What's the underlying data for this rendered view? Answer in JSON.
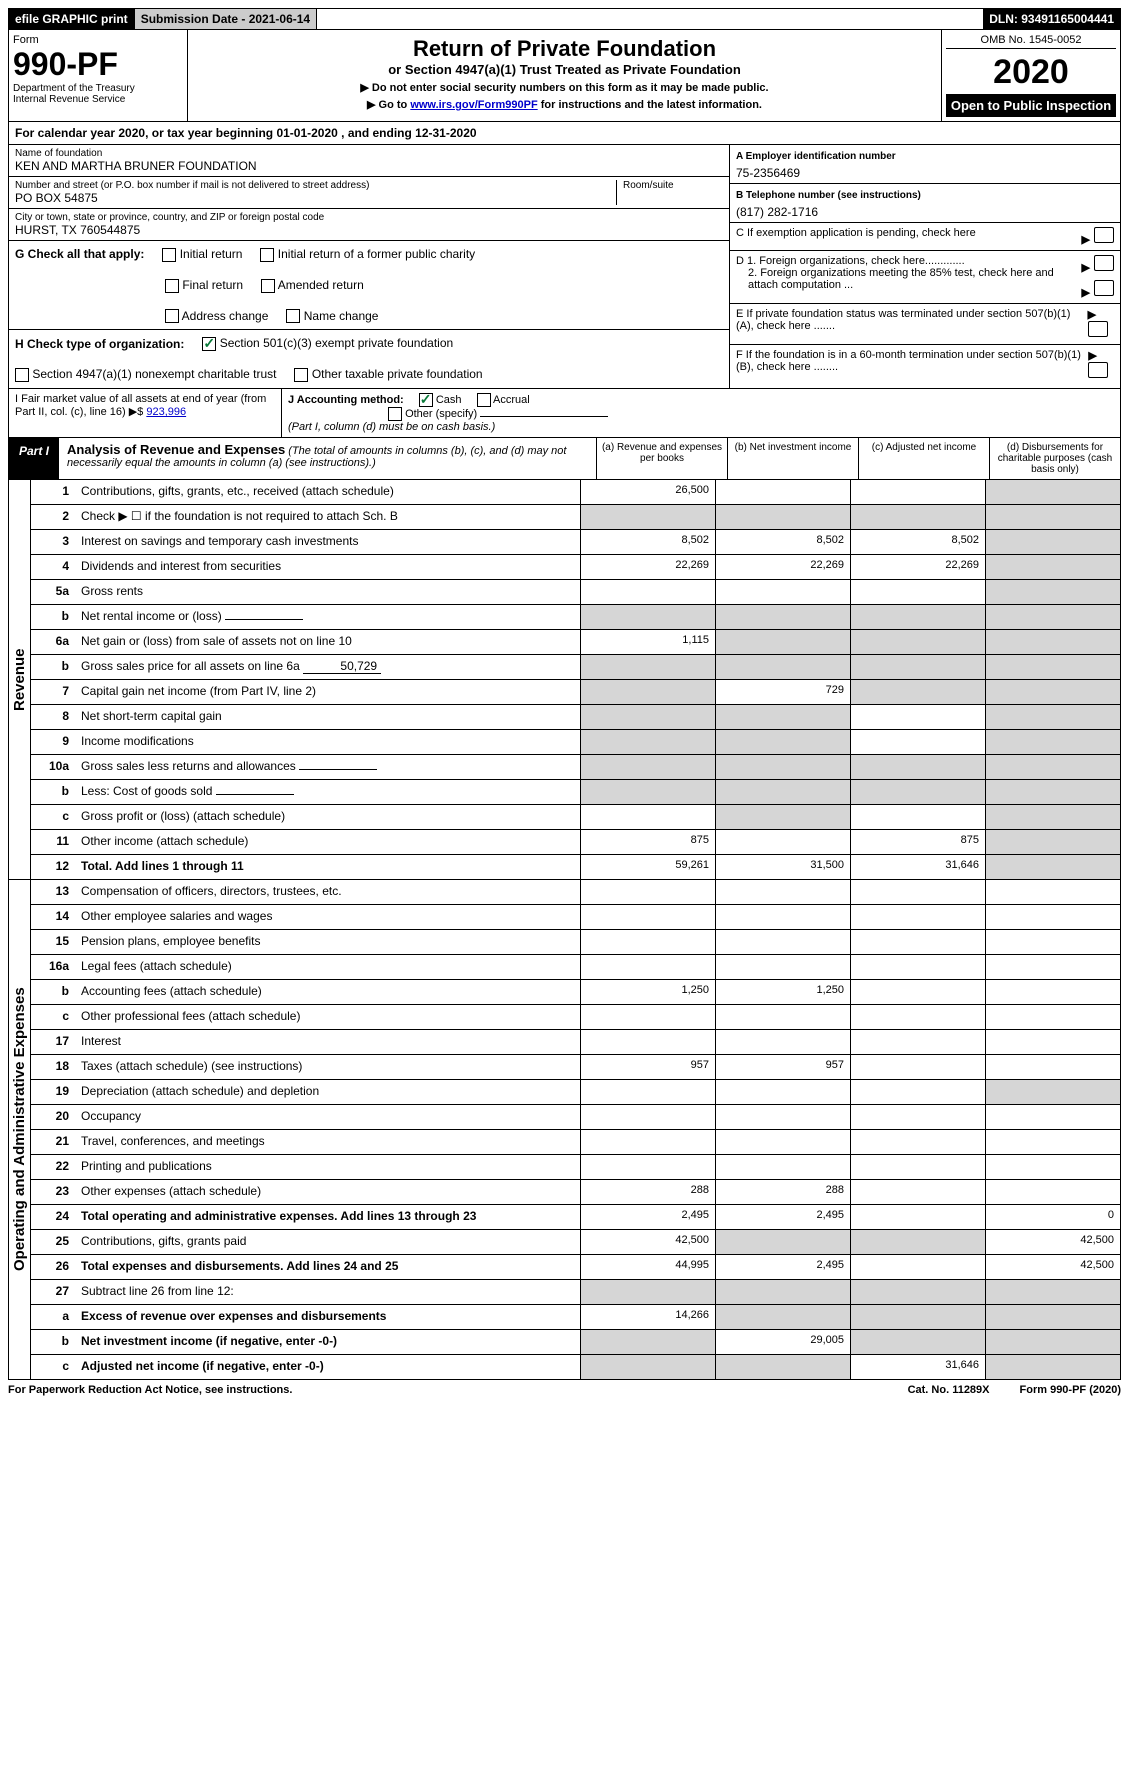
{
  "topbar": {
    "efile": "efile GRAPHIC print",
    "submission": "Submission Date - 2021-06-14",
    "dln": "DLN: 93491165004441"
  },
  "header": {
    "form_label": "Form",
    "form_number": "990-PF",
    "dept": "Department of the Treasury\nInternal Revenue Service",
    "title": "Return of Private Foundation",
    "subtitle": "or Section 4947(a)(1) Trust Treated as Private Foundation",
    "note1": "▶ Do not enter social security numbers on this form as it may be made public.",
    "note2_pre": "▶ Go to ",
    "note2_link": "www.irs.gov/Form990PF",
    "note2_post": " for instructions and the latest information.",
    "omb": "OMB No. 1545-0052",
    "year": "2020",
    "open": "Open to Public Inspection"
  },
  "cal_year": "For calendar year 2020, or tax year beginning 01-01-2020              , and ending 12-31-2020",
  "foundation": {
    "name_label": "Name of foundation",
    "name": "KEN AND MARTHA BRUNER FOUNDATION",
    "addr_label": "Number and street (or P.O. box number if mail is not delivered to street address)",
    "addr": "PO BOX 54875",
    "room_label": "Room/suite",
    "city_label": "City or town, state or province, country, and ZIP or foreign postal code",
    "city": "HURST, TX  760544875",
    "ein_label": "A Employer identification number",
    "ein": "75-2356469",
    "phone_label": "B Telephone number (see instructions)",
    "phone": "(817) 282-1716",
    "c_label": "C If exemption application is pending, check here",
    "d1": "D 1. Foreign organizations, check here.............",
    "d2": "2. Foreign organizations meeting the 85% test, check here and attach computation ...",
    "e_label": "E  If private foundation status was terminated under section 507(b)(1)(A), check here .......",
    "f_label": "F  If the foundation is in a 60-month termination under section 507(b)(1)(B), check here ........"
  },
  "checks": {
    "g_label": "G Check all that apply:",
    "initial": "Initial return",
    "initial_former": "Initial return of a former public charity",
    "final": "Final return",
    "amended": "Amended return",
    "addr_change": "Address change",
    "name_change": "Name change",
    "h_label": "H Check type of organization:",
    "s501": "Section 501(c)(3) exempt private foundation",
    "s4947": "Section 4947(a)(1) nonexempt charitable trust",
    "other_tax": "Other taxable private foundation"
  },
  "lower": {
    "i_label": "I Fair market value of all assets at end of year (from Part II, col. (c), line 16) ▶$",
    "i_value": "923,996",
    "j_label": "J Accounting method:",
    "cash": "Cash",
    "accrual": "Accrual",
    "other": "Other (specify)",
    "j_note": "(Part I, column (d) must be on cash basis.)"
  },
  "part1": {
    "label": "Part I",
    "title": "Analysis of Revenue and Expenses",
    "title_note": "(The total of amounts in columns (b), (c), and (d) may not necessarily equal the amounts in column (a) (see instructions).)",
    "col_a": "(a)   Revenue and expenses per books",
    "col_b": "(b)  Net investment income",
    "col_c": "(c)  Adjusted net income",
    "col_d": "(d)  Disbursements for charitable purposes (cash basis only)"
  },
  "sections": {
    "revenue": "Revenue",
    "expenses": "Operating and Administrative Expenses"
  },
  "rows": [
    {
      "n": "1",
      "desc": "Contributions, gifts, grants, etc., received (attach schedule)",
      "a": "26,500",
      "d_shade": true
    },
    {
      "n": "2",
      "desc": "Check ▶ ☐ if the foundation is not required to attach Sch. B",
      "all_shade": true
    },
    {
      "n": "3",
      "desc": "Interest on savings and temporary cash investments",
      "a": "8,502",
      "b": "8,502",
      "c": "8,502",
      "d_shade": true
    },
    {
      "n": "4",
      "desc": "Dividends and interest from securities",
      "a": "22,269",
      "b": "22,269",
      "c": "22,269",
      "d_shade": true
    },
    {
      "n": "5a",
      "desc": "Gross rents",
      "d_shade": true
    },
    {
      "n": "b",
      "desc": "Net rental income or (loss)",
      "all_shade": true,
      "inline": true
    },
    {
      "n": "6a",
      "desc": "Net gain or (loss) from sale of assets not on line 10",
      "a": "1,115",
      "bcd_shade": true
    },
    {
      "n": "b",
      "desc": "Gross sales price for all assets on line 6a",
      "inline_val": "50,729",
      "all_shade": true
    },
    {
      "n": "7",
      "desc": "Capital gain net income (from Part IV, line 2)",
      "a_shade": true,
      "b": "729",
      "cd_shade": true
    },
    {
      "n": "8",
      "desc": "Net short-term capital gain",
      "ab_shade": true,
      "d_shade": true
    },
    {
      "n": "9",
      "desc": "Income modifications",
      "ab_shade": true,
      "d_shade": true
    },
    {
      "n": "10a",
      "desc": "Gross sales less returns and allowances",
      "inline": true,
      "all_shade": true
    },
    {
      "n": "b",
      "desc": "Less: Cost of goods sold",
      "inline": true,
      "all_shade": true
    },
    {
      "n": "c",
      "desc": "Gross profit or (loss) (attach schedule)",
      "b_shade": true,
      "d_shade": true
    },
    {
      "n": "11",
      "desc": "Other income (attach schedule)",
      "a": "875",
      "c": "875",
      "d_shade": true
    },
    {
      "n": "12",
      "desc": "Total. Add lines 1 through 11",
      "bold": true,
      "a": "59,261",
      "b": "31,500",
      "c": "31,646",
      "d_shade": true
    }
  ],
  "exp_rows": [
    {
      "n": "13",
      "desc": "Compensation of officers, directors, trustees, etc."
    },
    {
      "n": "14",
      "desc": "Other employee salaries and wages"
    },
    {
      "n": "15",
      "desc": "Pension plans, employee benefits"
    },
    {
      "n": "16a",
      "desc": "Legal fees (attach schedule)"
    },
    {
      "n": "b",
      "desc": "Accounting fees (attach schedule)",
      "a": "1,250",
      "b": "1,250"
    },
    {
      "n": "c",
      "desc": "Other professional fees (attach schedule)"
    },
    {
      "n": "17",
      "desc": "Interest"
    },
    {
      "n": "18",
      "desc": "Taxes (attach schedule) (see instructions)",
      "a": "957",
      "b": "957"
    },
    {
      "n": "19",
      "desc": "Depreciation (attach schedule) and depletion",
      "d_shade": true
    },
    {
      "n": "20",
      "desc": "Occupancy"
    },
    {
      "n": "21",
      "desc": "Travel, conferences, and meetings"
    },
    {
      "n": "22",
      "desc": "Printing and publications"
    },
    {
      "n": "23",
      "desc": "Other expenses (attach schedule)",
      "a": "288",
      "b": "288"
    },
    {
      "n": "24",
      "desc": "Total operating and administrative expenses. Add lines 13 through 23",
      "bold": true,
      "a": "2,495",
      "b": "2,495",
      "d": "0"
    },
    {
      "n": "25",
      "desc": "Contributions, gifts, grants paid",
      "a": "42,500",
      "bc_shade": true,
      "d": "42,500"
    },
    {
      "n": "26",
      "desc": "Total expenses and disbursements. Add lines 24 and 25",
      "bold": true,
      "a": "44,995",
      "b": "2,495",
      "d": "42,500"
    },
    {
      "n": "27",
      "desc": "Subtract line 26 from line 12:",
      "all_shade": true
    },
    {
      "n": "a",
      "desc": "Excess of revenue over expenses and disbursements",
      "bold": true,
      "a": "14,266",
      "bcd_shade": true
    },
    {
      "n": "b",
      "desc": "Net investment income (if negative, enter -0-)",
      "bold": true,
      "a_shade": true,
      "b": "29,005",
      "cd_shade": true
    },
    {
      "n": "c",
      "desc": "Adjusted net income (if negative, enter -0-)",
      "bold": true,
      "ab_shade": true,
      "c": "31,646",
      "d_shade": true
    }
  ],
  "footer": {
    "left": "For Paperwork Reduction Act Notice, see instructions.",
    "cat": "Cat. No. 11289X",
    "form": "Form 990-PF (2020)"
  }
}
